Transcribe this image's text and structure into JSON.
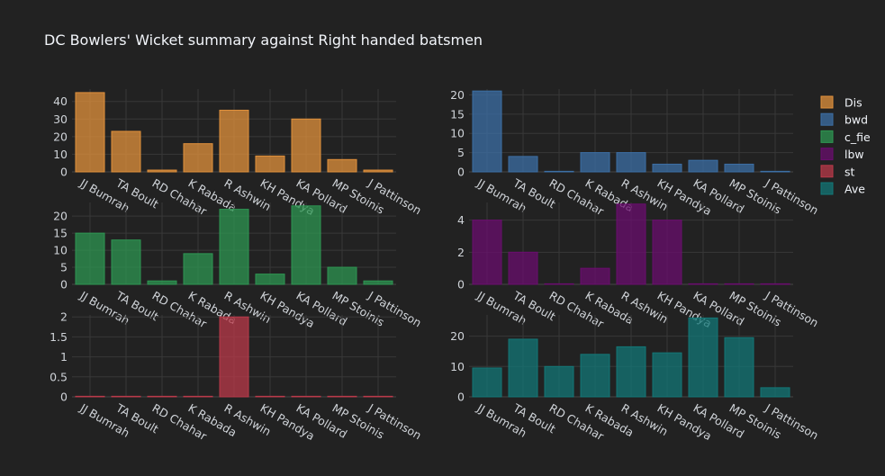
{
  "title": "DC Bowlers' Wicket summary against Right handed batsmen",
  "chart_data": {
    "type": "bar",
    "categories": [
      "JJ Bumrah",
      "TA Boult",
      "RD Chahar",
      "K Rabada",
      "R Ashwin",
      "KH Pandya",
      "KA Pollard",
      "MP Stoinis",
      "J Pattinson"
    ],
    "series": [
      {
        "name": "Dis",
        "color": "#e1913c",
        "values": [
          45,
          23,
          1,
          16,
          35,
          9,
          30,
          7,
          1
        ],
        "ylim": [
          0,
          47
        ],
        "ticks": [
          0,
          10,
          20,
          30,
          40
        ]
      },
      {
        "name": "bwd",
        "color": "#3c6fa5",
        "values": [
          21,
          4,
          0,
          5,
          5,
          2,
          3,
          2,
          0
        ],
        "ylim": [
          0,
          21.5
        ],
        "ticks": [
          0,
          5,
          10,
          15,
          20
        ]
      },
      {
        "name": "c_fie",
        "color": "#2e9652",
        "values": [
          15,
          13,
          1,
          9,
          22,
          3,
          23,
          5,
          1
        ],
        "ylim": [
          0,
          24
        ],
        "ticks": [
          0,
          5,
          10,
          15,
          20
        ]
      },
      {
        "name": "lbw",
        "color": "#6a0d6e",
        "values": [
          4,
          2,
          0,
          1,
          5,
          4,
          0,
          0,
          0
        ],
        "ylim": [
          0,
          5.1
        ],
        "ticks": [
          0,
          2,
          4
        ]
      },
      {
        "name": "st",
        "color": "#b93a4a",
        "values": [
          0,
          0,
          0,
          0,
          2,
          0,
          0,
          0,
          0
        ],
        "ylim": [
          0,
          2.05
        ],
        "ticks": [
          0,
          0.5,
          1,
          1.5,
          2
        ]
      },
      {
        "name": "Ave",
        "color": "#137777",
        "values": [
          9.5,
          19,
          10,
          14,
          16.5,
          14.5,
          26,
          19.5,
          3
        ],
        "ylim": [
          0,
          27
        ],
        "ticks": [
          0,
          10,
          20
        ]
      }
    ],
    "grid": true,
    "legend_position": "top-right"
  }
}
